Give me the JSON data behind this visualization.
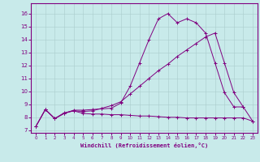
{
  "xlabel": "Windchill (Refroidissement éolien,°C)",
  "bg_color": "#c8eaea",
  "line_color": "#800080",
  "grid_color": "#aacccc",
  "xlim": [
    -0.5,
    23.5
  ],
  "ylim": [
    6.8,
    16.8
  ],
  "xticks": [
    0,
    1,
    2,
    3,
    4,
    5,
    6,
    7,
    8,
    9,
    10,
    11,
    12,
    13,
    14,
    15,
    16,
    17,
    18,
    19,
    20,
    21,
    22,
    23
  ],
  "yticks": [
    7,
    8,
    9,
    10,
    11,
    12,
    13,
    14,
    15,
    16
  ],
  "series": [
    {
      "x": [
        0,
        1,
        2,
        3,
        4,
        5,
        6,
        7,
        8,
        9,
        10,
        11,
        12,
        13,
        14,
        15,
        16,
        17,
        18,
        19,
        20,
        21,
        22,
        23
      ],
      "y": [
        7.3,
        8.6,
        7.9,
        8.35,
        8.5,
        8.3,
        8.25,
        8.25,
        8.2,
        8.2,
        8.15,
        8.1,
        8.1,
        8.05,
        8.0,
        8.0,
        7.95,
        7.95,
        7.95,
        7.95,
        7.95,
        7.95,
        7.95,
        7.7
      ]
    },
    {
      "x": [
        0,
        1,
        2,
        3,
        4,
        5,
        6,
        7,
        8,
        9,
        10,
        11,
        12,
        13,
        14,
        15,
        16,
        17,
        18,
        19,
        20,
        21,
        22
      ],
      "y": [
        7.3,
        8.6,
        7.9,
        8.3,
        8.55,
        8.55,
        8.6,
        8.65,
        8.7,
        9.1,
        10.4,
        12.2,
        14.0,
        15.6,
        16.0,
        15.3,
        15.6,
        15.3,
        14.5,
        12.2,
        9.9,
        8.8,
        8.8
      ]
    },
    {
      "x": [
        0,
        1,
        2,
        3,
        4,
        5,
        6,
        7,
        8,
        9,
        10,
        11,
        12,
        13,
        14,
        15,
        16,
        17,
        18,
        19,
        20,
        21,
        22,
        23
      ],
      "y": [
        7.3,
        8.6,
        7.9,
        8.3,
        8.5,
        8.45,
        8.5,
        8.7,
        8.9,
        9.2,
        9.8,
        10.4,
        11.0,
        11.6,
        12.1,
        12.7,
        13.2,
        13.7,
        14.2,
        14.5,
        12.2,
        9.9,
        8.8,
        7.7
      ]
    }
  ]
}
